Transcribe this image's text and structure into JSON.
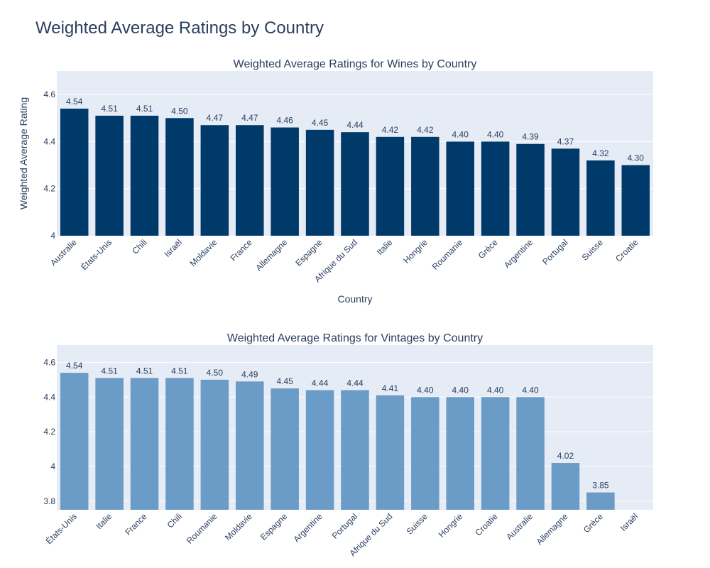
{
  "page": {
    "title": "Weighted Average Ratings by Country"
  },
  "colors": {
    "wines_bar": "#003a6b",
    "vintages_bar": "#6b9bc7",
    "plot_bg": "#e5ecf6",
    "grid": "#ffffff",
    "text": "#2a3f5f"
  },
  "chart_data": [
    {
      "type": "bar",
      "title": "Weighted Average Ratings for Wines by Country",
      "xlabel": "Country",
      "ylabel": "Weighted Average Rating",
      "ylim": [
        4.0,
        4.7
      ],
      "yticks": [
        4,
        4.2,
        4.4,
        4.6
      ],
      "ytick_labels": [
        "4",
        "4.2",
        "4.4",
        "4.6"
      ],
      "grid": true,
      "categories": [
        "Australie",
        "États-Unis",
        "Chili",
        "Israël",
        "Moldavie",
        "France",
        "Allemagne",
        "Espagne",
        "Afrique du Sud",
        "Italie",
        "Hongrie",
        "Roumanie",
        "Grèce",
        "Argentine",
        "Portugal",
        "Suisse",
        "Croatie"
      ],
      "values": [
        4.54,
        4.51,
        4.51,
        4.5,
        4.47,
        4.47,
        4.46,
        4.45,
        4.44,
        4.42,
        4.42,
        4.4,
        4.4,
        4.39,
        4.37,
        4.32,
        4.3
      ],
      "labels": [
        "4.54",
        "4.51",
        "4.51",
        "4.50",
        "4.47",
        "4.47",
        "4.46",
        "4.45",
        "4.44",
        "4.42",
        "4.42",
        "4.40",
        "4.40",
        "4.39",
        "4.37",
        "4.32",
        "4.30"
      ]
    },
    {
      "type": "bar",
      "title": "Weighted Average Ratings for Vintages by Country",
      "xlabel": "",
      "ylabel": "",
      "ylim": [
        3.75,
        4.7
      ],
      "yticks": [
        3.8,
        4,
        4.2,
        4.4,
        4.6
      ],
      "ytick_labels": [
        "3.8",
        "4",
        "4.2",
        "4.4",
        "4.6"
      ],
      "grid": true,
      "categories": [
        "États-Unis",
        "Italie",
        "France",
        "Chili",
        "Roumanie",
        "Moldavie",
        "Espagne",
        "Argentine",
        "Portugal",
        "Afrique du Sud",
        "Suisse",
        "Hongrie",
        "Croatie",
        "Australie",
        "Allemagne",
        "Grèce",
        "Israël"
      ],
      "values": [
        4.54,
        4.51,
        4.51,
        4.51,
        4.5,
        4.49,
        4.45,
        4.44,
        4.44,
        4.41,
        4.4,
        4.4,
        4.4,
        4.4,
        4.02,
        3.85,
        null
      ],
      "labels": [
        "4.54",
        "4.51",
        "4.51",
        "4.51",
        "4.50",
        "4.49",
        "4.45",
        "4.44",
        "4.44",
        "4.41",
        "4.40",
        "4.40",
        "4.40",
        "4.40",
        "4.02",
        "3.85",
        ""
      ]
    }
  ]
}
